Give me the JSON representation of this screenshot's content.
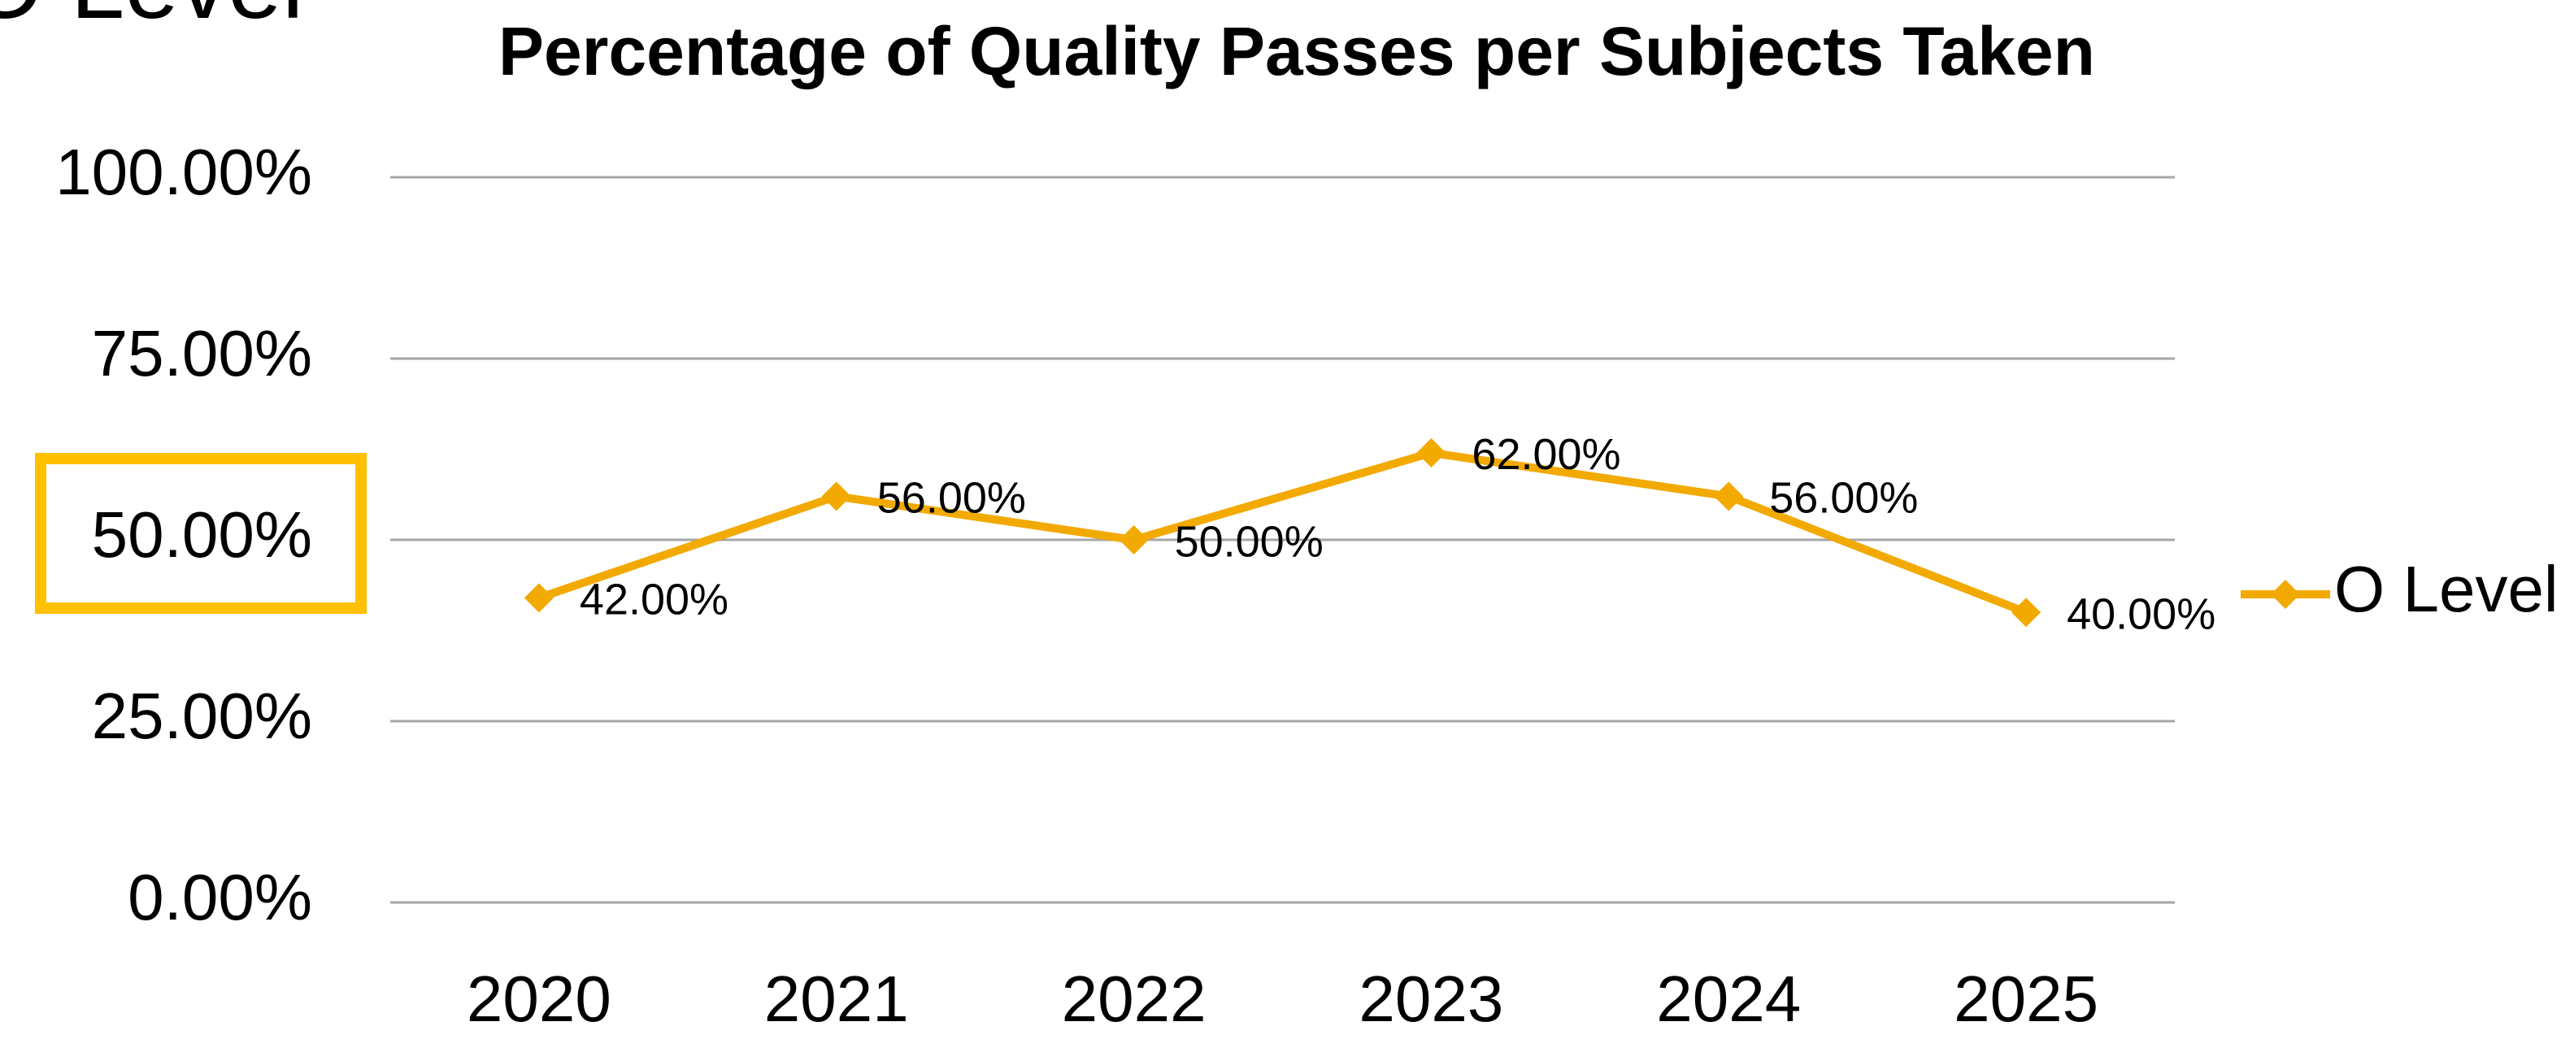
{
  "heading": "O Level",
  "chart_data": {
    "type": "line",
    "title": "Percentage of Quality Passes per Subjects Taken",
    "categories": [
      "2020",
      "2021",
      "2022",
      "2023",
      "2024",
      "2025"
    ],
    "series": [
      {
        "name": "O Level",
        "color": "#f2a900",
        "values": [
          42,
          56,
          50,
          62,
          56,
          40
        ],
        "value_labels": [
          "42.00%",
          "56.00%",
          "50.00%",
          "62.00%",
          "56.00%",
          "40.00%"
        ]
      }
    ],
    "ylim": [
      0,
      100
    ],
    "yticks": [
      {
        "value": 0,
        "label": "0.00%"
      },
      {
        "value": 25,
        "label": "25.00%"
      },
      {
        "value": 50,
        "label": "50.00%"
      },
      {
        "value": 75,
        "label": "75.00%"
      },
      {
        "value": 100,
        "label": "100.00%"
      }
    ],
    "grid": true,
    "legend": "right"
  }
}
